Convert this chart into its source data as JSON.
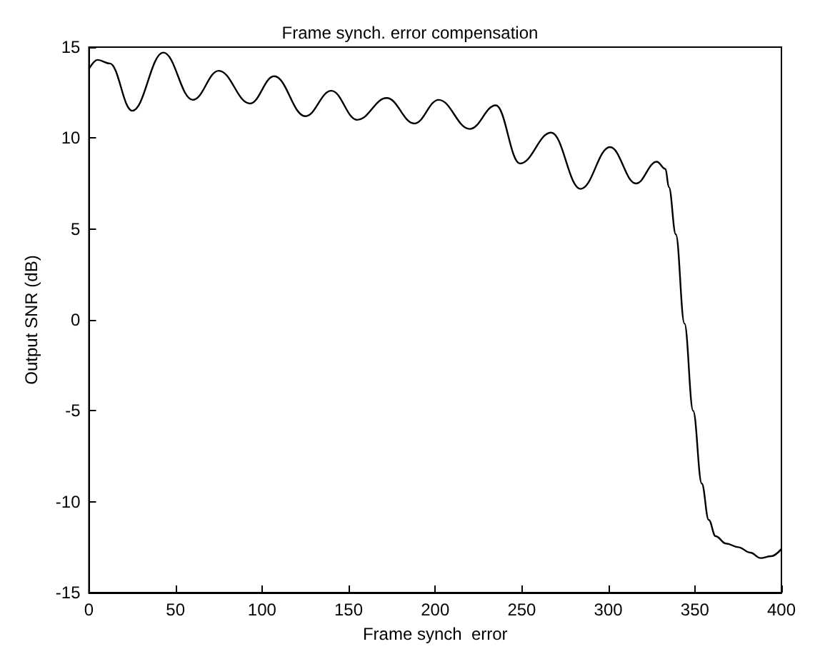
{
  "chart_data": {
    "type": "line",
    "title": "Frame synch. error compensation",
    "xlabel": "Frame synch  error",
    "ylabel": "Output SNR (dB)",
    "x": [
      0,
      5,
      12,
      25,
      43,
      60,
      75,
      93,
      107,
      125,
      140,
      155,
      172,
      188,
      202,
      220,
      235,
      249,
      267,
      284,
      301,
      316,
      328,
      333,
      335,
      339,
      344,
      349,
      354,
      358,
      362,
      368,
      375,
      382,
      388,
      394,
      400
    ],
    "series": [
      {
        "color": "#000000",
        "values": [
          13.8,
          14.3,
          14.1,
          11.5,
          14.7,
          12.1,
          13.7,
          11.9,
          13.4,
          11.2,
          12.6,
          11.0,
          12.2,
          10.8,
          12.1,
          10.5,
          11.8,
          8.6,
          10.3,
          7.2,
          9.5,
          7.5,
          8.7,
          8.3,
          7.3,
          4.7,
          -0.2,
          -5.0,
          -9.0,
          -11.0,
          -11.9,
          -12.3,
          -12.5,
          -12.8,
          -13.1,
          -13.0,
          -12.6
        ]
      }
    ],
    "xlim": [
      0,
      400
    ],
    "xticks": [
      0,
      50,
      100,
      150,
      200,
      250,
      300,
      350,
      400
    ],
    "ylim": [
      -15,
      15
    ],
    "yticks": [
      -15,
      -10,
      -5,
      0,
      5,
      10,
      15
    ],
    "grid": false,
    "marker": "none",
    "line_style": "solid"
  }
}
